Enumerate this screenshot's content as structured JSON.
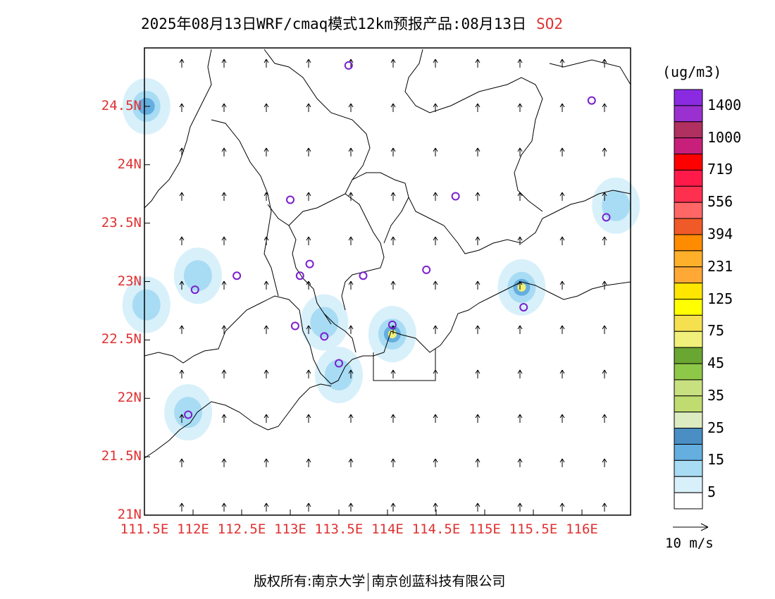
{
  "title": {
    "text": "2025年08月13日WRF/cmaq模式12km预报产品:08月13日",
    "pollutant": "SO2"
  },
  "axes": {
    "lat_range": [
      21.0,
      25.0
    ],
    "lon_range": [
      111.5,
      116.5
    ],
    "lat_ticks": [
      "24.5N",
      "24N",
      "23.5N",
      "23N",
      "22.5N",
      "22N",
      "21.5N",
      "21N"
    ],
    "lat_values": [
      24.5,
      24.0,
      23.5,
      23.0,
      22.5,
      22.0,
      21.5,
      21.0
    ],
    "lon_ticks": [
      "111.5E",
      "112E",
      "112.5E",
      "113E",
      "113.5E",
      "114E",
      "114.5E",
      "115E",
      "115.5E",
      "116E"
    ],
    "lon_values": [
      111.5,
      112.0,
      112.5,
      113.0,
      113.5,
      114.0,
      114.5,
      115.0,
      115.5,
      116.0
    ]
  },
  "colorbar": {
    "units": "(ug/m3)",
    "labels": [
      "1400",
      "1000",
      "719",
      "556",
      "394",
      "231",
      "125",
      "75",
      "45",
      "35",
      "25",
      "15",
      "5"
    ],
    "colors_top_to_bottom": [
      "#8a2be2",
      "#9b30d0",
      "#b03060",
      "#c8207a",
      "#ff0000",
      "#ff1a4a",
      "#ff2f50",
      "#ff6666",
      "#f05a28",
      "#ff8c00",
      "#ffb02a",
      "#ffa836",
      "#ffe600",
      "#ffff00",
      "#f5e050",
      "#f0f07a",
      "#6aa632",
      "#8ec848",
      "#c8e080",
      "#c0dc70",
      "#dcecc0",
      "#4a8ec4",
      "#64aee0",
      "#a8dcf4",
      "#d8f0fa",
      "#ffffff"
    ],
    "reference_vector": "10 m/s"
  },
  "stations": [
    {
      "lon": 113.6,
      "lat": 24.85
    },
    {
      "lon": 116.1,
      "lat": 24.55
    },
    {
      "lon": 113.0,
      "lat": 23.7
    },
    {
      "lon": 114.7,
      "lat": 23.73
    },
    {
      "lon": 116.25,
      "lat": 23.55
    },
    {
      "lon": 113.2,
      "lat": 23.15
    },
    {
      "lon": 112.45,
      "lat": 23.05
    },
    {
      "lon": 113.1,
      "lat": 23.05
    },
    {
      "lon": 113.75,
      "lat": 23.05
    },
    {
      "lon": 114.4,
      "lat": 23.1
    },
    {
      "lon": 112.02,
      "lat": 22.93
    },
    {
      "lon": 115.4,
      "lat": 22.78
    },
    {
      "lon": 113.05,
      "lat": 22.62
    },
    {
      "lon": 114.05,
      "lat": 22.63
    },
    {
      "lon": 113.35,
      "lat": 22.53
    },
    {
      "lon": 113.5,
      "lat": 22.3
    },
    {
      "lon": 111.95,
      "lat": 21.86
    }
  ],
  "hotspots": [
    {
      "lon": 111.52,
      "lat": 24.5,
      "level": "25"
    },
    {
      "lon": 111.52,
      "lat": 22.8,
      "level": "15"
    },
    {
      "lon": 112.05,
      "lat": 23.05,
      "level": "15"
    },
    {
      "lon": 113.35,
      "lat": 22.65,
      "level": "15"
    },
    {
      "lon": 113.5,
      "lat": 22.2,
      "level": "15"
    },
    {
      "lon": 114.05,
      "lat": 22.55,
      "level": "75"
    },
    {
      "lon": 115.38,
      "lat": 22.95,
      "level": "75"
    },
    {
      "lon": 116.35,
      "lat": 23.65,
      "level": "15"
    },
    {
      "lon": 111.95,
      "lat": 21.88,
      "level": "15"
    }
  ],
  "footer": {
    "left": "版权所有:南京大学",
    "right": "南京创蓝科技有限公司"
  }
}
